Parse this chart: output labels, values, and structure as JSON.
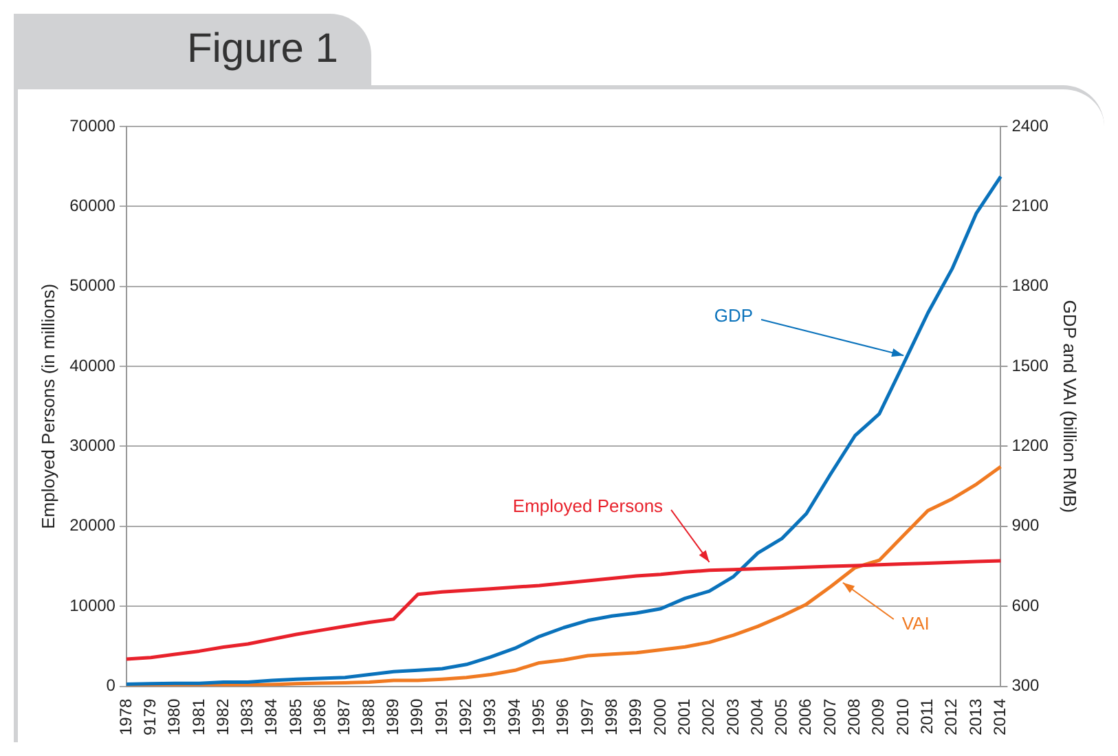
{
  "chart_data": {
    "type": "line",
    "title": "Figure 1",
    "ylabel": "Employed Persons (in millions)",
    "y2label": "GDP and VAI (billion RMB)",
    "categories": [
      "1978",
      "9179",
      "1980",
      "1981",
      "1982",
      "1983",
      "1984",
      "1985",
      "1986",
      "1987",
      "1988",
      "1989",
      "1990",
      "1991",
      "1992",
      "1993",
      "1994",
      "1995",
      "1996",
      "1997",
      "1998",
      "1999",
      "2000",
      "2001",
      "2002",
      "2003",
      "2004",
      "2005",
      "2006",
      "2007",
      "2008",
      "2009",
      "2010",
      "2011",
      "2012",
      "2013",
      "2014"
    ],
    "series": [
      {
        "name": "Employed Persons",
        "color": "#e8212b",
        "values": [
          3400,
          3600,
          4000,
          4400,
          4900,
          5300,
          5900,
          6500,
          7000,
          7500,
          8000,
          8400,
          11500,
          11800,
          12000,
          12200,
          12400,
          12600,
          12900,
          13200,
          13500,
          13800,
          14000,
          14300,
          14500,
          14600,
          14700,
          14800,
          14900,
          15000,
          15100,
          15200,
          15300,
          15400,
          15500,
          15600,
          15700
        ]
      },
      {
        "name": "GDP",
        "color": "#0a72bb",
        "axis": "y2",
        "values": [
          308,
          310,
          311,
          311,
          316,
          316,
          322,
          327,
          330,
          333,
          344,
          355,
          360,
          366,
          382,
          410,
          443,
          487,
          520,
          547,
          564,
          575,
          591,
          630,
          657,
          712,
          800,
          855,
          948,
          1097,
          1240,
          1322,
          1510,
          1700,
          1866,
          2075,
          2212
        ]
      },
      {
        "name": "VAI",
        "color": "#f07a22",
        "axis": "y2",
        "values": [
          303,
          303,
          303,
          303,
          303,
          305,
          307,
          310,
          312,
          313,
          316,
          322,
          322,
          327,
          333,
          344,
          360,
          388,
          399,
          415,
          421,
          426,
          437,
          448,
          465,
          492,
          525,
          564,
          608,
          674,
          745,
          773,
          866,
          959,
          1003,
          1058,
          1124
        ]
      }
    ],
    "ylim": [
      0,
      70000
    ],
    "yticks": [
      0,
      10000,
      20000,
      30000,
      40000,
      50000,
      60000,
      70000
    ],
    "y2lim": [
      300,
      2400
    ],
    "y2ticks": [
      300,
      600,
      900,
      1200,
      1500,
      1800,
      2100,
      2400
    ],
    "grid": "y",
    "legend": false,
    "marker": "none",
    "line_style": "solid"
  }
}
